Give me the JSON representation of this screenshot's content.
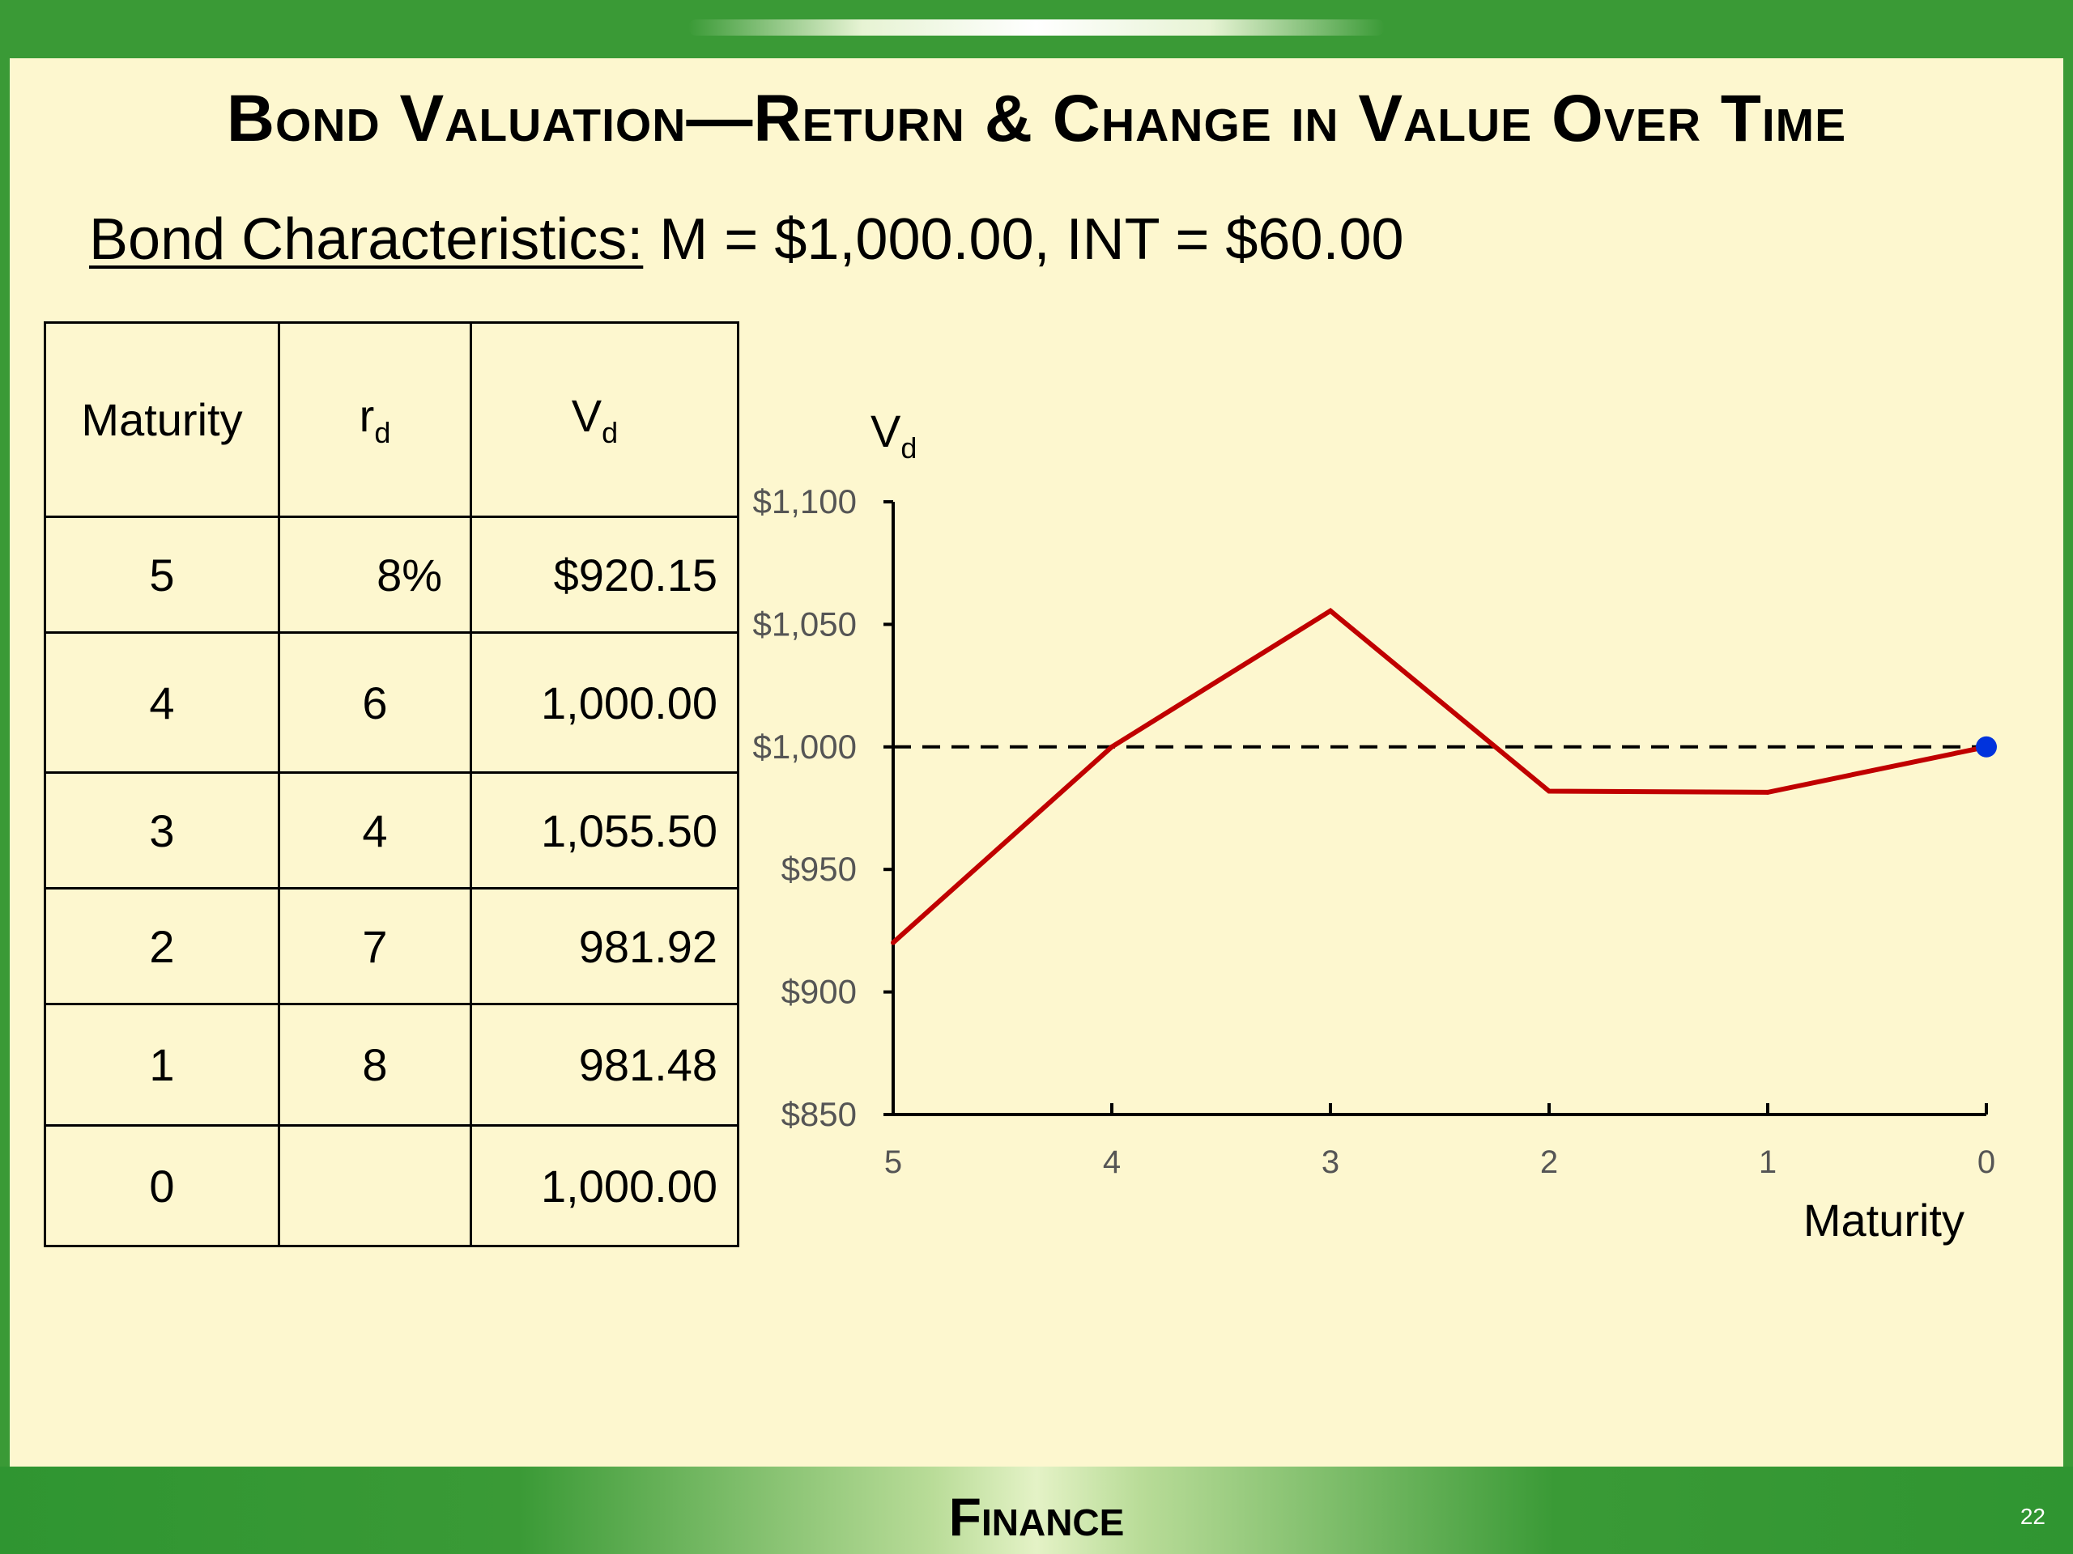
{
  "title": "Bond Valuation—Return & Change in Value Over Time",
  "subtitle": {
    "label": "Bond Characteristics:",
    "text": " M = $1,000.00, INT = $60.00"
  },
  "table": {
    "headers": [
      {
        "main": "Maturity",
        "sub": ""
      },
      {
        "main": "r",
        "sub": "d"
      },
      {
        "main": "V",
        "sub": "d"
      }
    ],
    "rows": [
      {
        "maturity": "5",
        "rd": "8%",
        "vd": "$920.15"
      },
      {
        "maturity": "4",
        "rd": "6",
        "vd": "1,000.00"
      },
      {
        "maturity": "3",
        "rd": "4",
        "vd": "1,055.50"
      },
      {
        "maturity": "2",
        "rd": "7",
        "vd": "981.92"
      },
      {
        "maturity": "1",
        "rd": "8",
        "vd": "981.48"
      },
      {
        "maturity": "0",
        "rd": "",
        "vd": "1,000.00"
      }
    ]
  },
  "chart_data": {
    "type": "line",
    "title": "",
    "ylabel_main": "V",
    "ylabel_sub": "d",
    "xlabel": "Maturity",
    "x": [
      5,
      4,
      3,
      2,
      1,
      0
    ],
    "x_tick_labels": [
      "5",
      "4",
      "3",
      "2",
      "1",
      "0"
    ],
    "y_tick_labels": [
      "$850",
      "$900",
      "$950",
      "$1,000",
      "$1,050",
      "$1,100"
    ],
    "y_ticks": [
      850,
      900,
      950,
      1000,
      1050,
      1100
    ],
    "ylim": [
      850,
      1100
    ],
    "x_reversed": true,
    "series": [
      {
        "values": [
          920.15,
          1000.0,
          1055.5,
          981.92,
          981.48,
          1000.0
        ],
        "color": "#c00000"
      }
    ],
    "reference_line": {
      "y": 1000,
      "style": "dashed",
      "color": "#000000"
    },
    "end_marker": {
      "x": 0,
      "y": 1000,
      "color": "#0033dd"
    }
  },
  "footer": "Finance",
  "page_number": "22",
  "colors": {
    "frame_green": "#3a9a36",
    "slide_background": "#fdf7cf",
    "line_red": "#c00000",
    "marker_blue": "#0033dd"
  }
}
